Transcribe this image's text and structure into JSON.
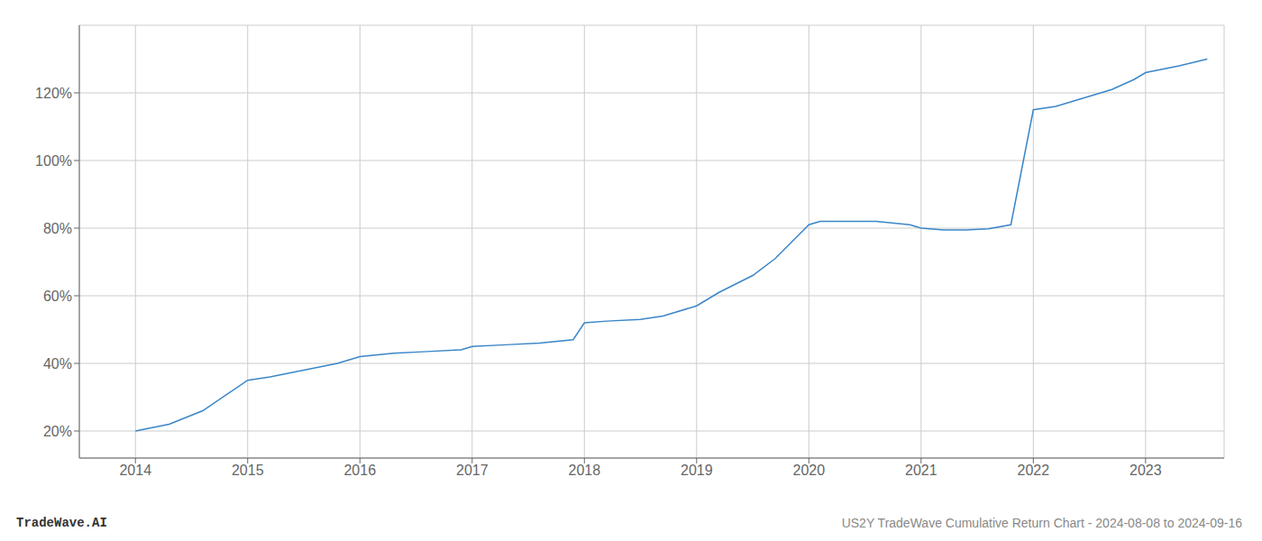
{
  "chart_data": {
    "type": "line",
    "title": "US2Y TradeWave Cumulative Return Chart - 2024-08-08 to 2024-09-16",
    "annotations": [
      "TradeWave.AI"
    ],
    "x": [
      2014.0,
      2014.3,
      2014.6,
      2015.0,
      2015.2,
      2015.5,
      2015.8,
      2016.0,
      2016.3,
      2016.6,
      2016.9,
      2017.0,
      2017.3,
      2017.6,
      2017.9,
      2018.0,
      2018.2,
      2018.5,
      2018.7,
      2019.0,
      2019.2,
      2019.5,
      2019.7,
      2020.0,
      2020.1,
      2020.3,
      2020.6,
      2020.9,
      2021.0,
      2021.2,
      2021.4,
      2021.6,
      2021.8,
      2022.0,
      2022.2,
      2022.4,
      2022.7,
      2022.9,
      2023.0,
      2023.3,
      2023.55
    ],
    "values": [
      20,
      22,
      26,
      35,
      36,
      38,
      40,
      42,
      43,
      43.5,
      44,
      45,
      45.5,
      46,
      47,
      52,
      52.5,
      53,
      54,
      57,
      61,
      66,
      71,
      81,
      82,
      82,
      82,
      81,
      80,
      79.5,
      79.5,
      79.8,
      81,
      115,
      116,
      118,
      121,
      124,
      126,
      128,
      130
    ],
    "color": "#3a86c8",
    "xlim": [
      2013.5,
      2023.7
    ],
    "ylim": [
      12,
      140
    ],
    "xticks": [
      2014,
      2015,
      2016,
      2017,
      2018,
      2019,
      2020,
      2021,
      2022,
      2023
    ],
    "yticks": [
      {
        "value": 20,
        "label": "20%"
      },
      {
        "value": 40,
        "label": "40%"
      },
      {
        "value": 60,
        "label": "60%"
      },
      {
        "value": 80,
        "label": "80%"
      },
      {
        "value": 100,
        "label": "100%"
      },
      {
        "value": 120,
        "label": "120%"
      }
    ],
    "grid": true
  }
}
